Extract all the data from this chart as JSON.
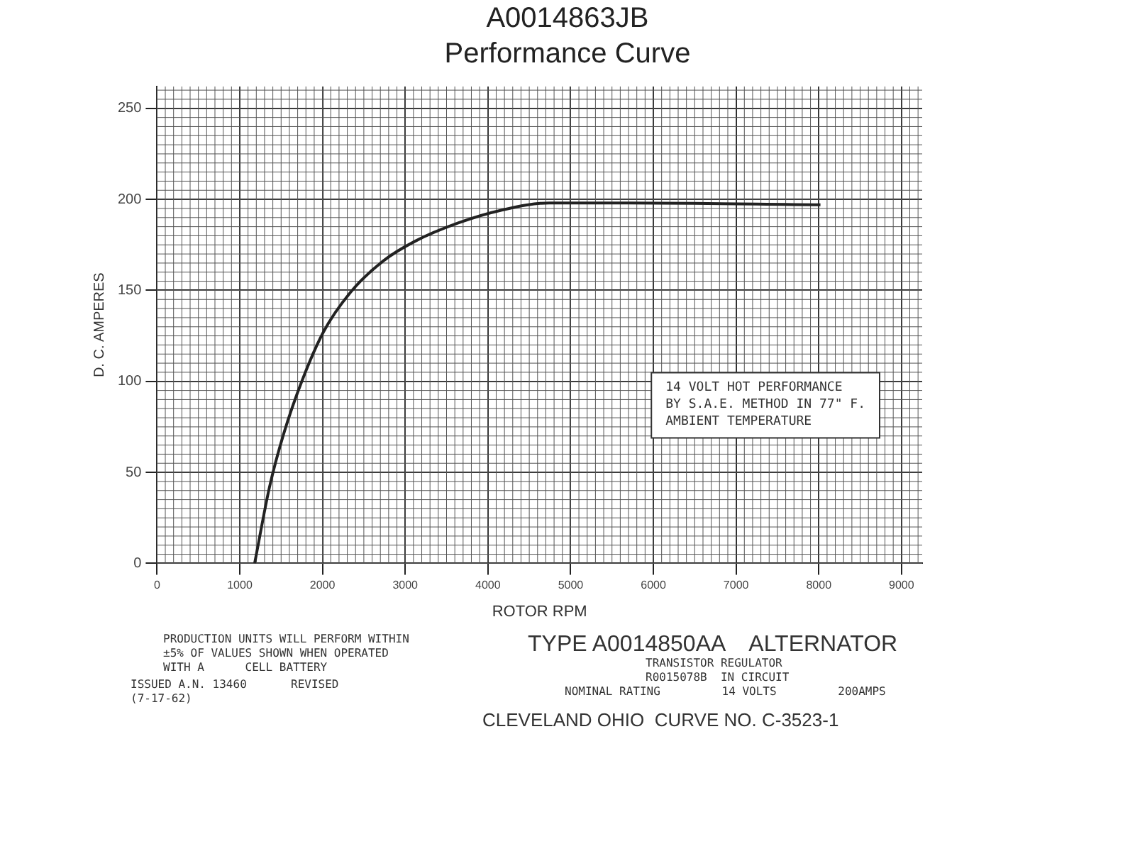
{
  "chart_data": {
    "type": "line",
    "title": "A0014863JB",
    "subtitle": "Performance Curve",
    "xlabel": "ROTOR RPM",
    "ylabel": "D. C. AMPERES",
    "series": [
      {
        "color": "#222222",
        "x": [
          1180,
          1360,
          1530,
          1750,
          2010,
          2340,
          2730,
          3120,
          3640,
          4160,
          4740,
          5710,
          8020
        ],
        "values": [
          0,
          42,
          71,
          100,
          127,
          149,
          166,
          177,
          187,
          194,
          198,
          198,
          197
        ]
      }
    ],
    "xlim": [
      0,
      9250
    ],
    "xticks": [
      0,
      1000,
      2000,
      3000,
      4000,
      5000,
      6000,
      7000,
      8000,
      9000
    ],
    "ylim": [
      0,
      262
    ],
    "yticks": [
      0,
      50,
      100,
      150,
      200,
      250
    ],
    "grid": true,
    "legend": false,
    "marker": "none",
    "line_style": "solid",
    "annotations": [
      "14 VOLT HOT PERFORMANCE\nBY S.A.E. METHOD IN 77\" F.\nAMBIENT TEMPERATURE",
      "PRODUCTION UNITS WILL PERFORM WITHIN\n±5% OF VALUES SHOWN WHEN OPERATED\nWITH A      CELL BATTERY",
      "ISSUED A.N. 13460\n(7-17-62)",
      "REVISED",
      "TYPE A0014850AA    ALTERNATOR",
      "TRANSISTOR REGULATOR\nR0015078B  IN CIRCUIT",
      "NOMINAL RATING         14 VOLTS         200AMPS",
      "CLEVELAND OHIO  CURVE NO. C-3523-1"
    ]
  }
}
